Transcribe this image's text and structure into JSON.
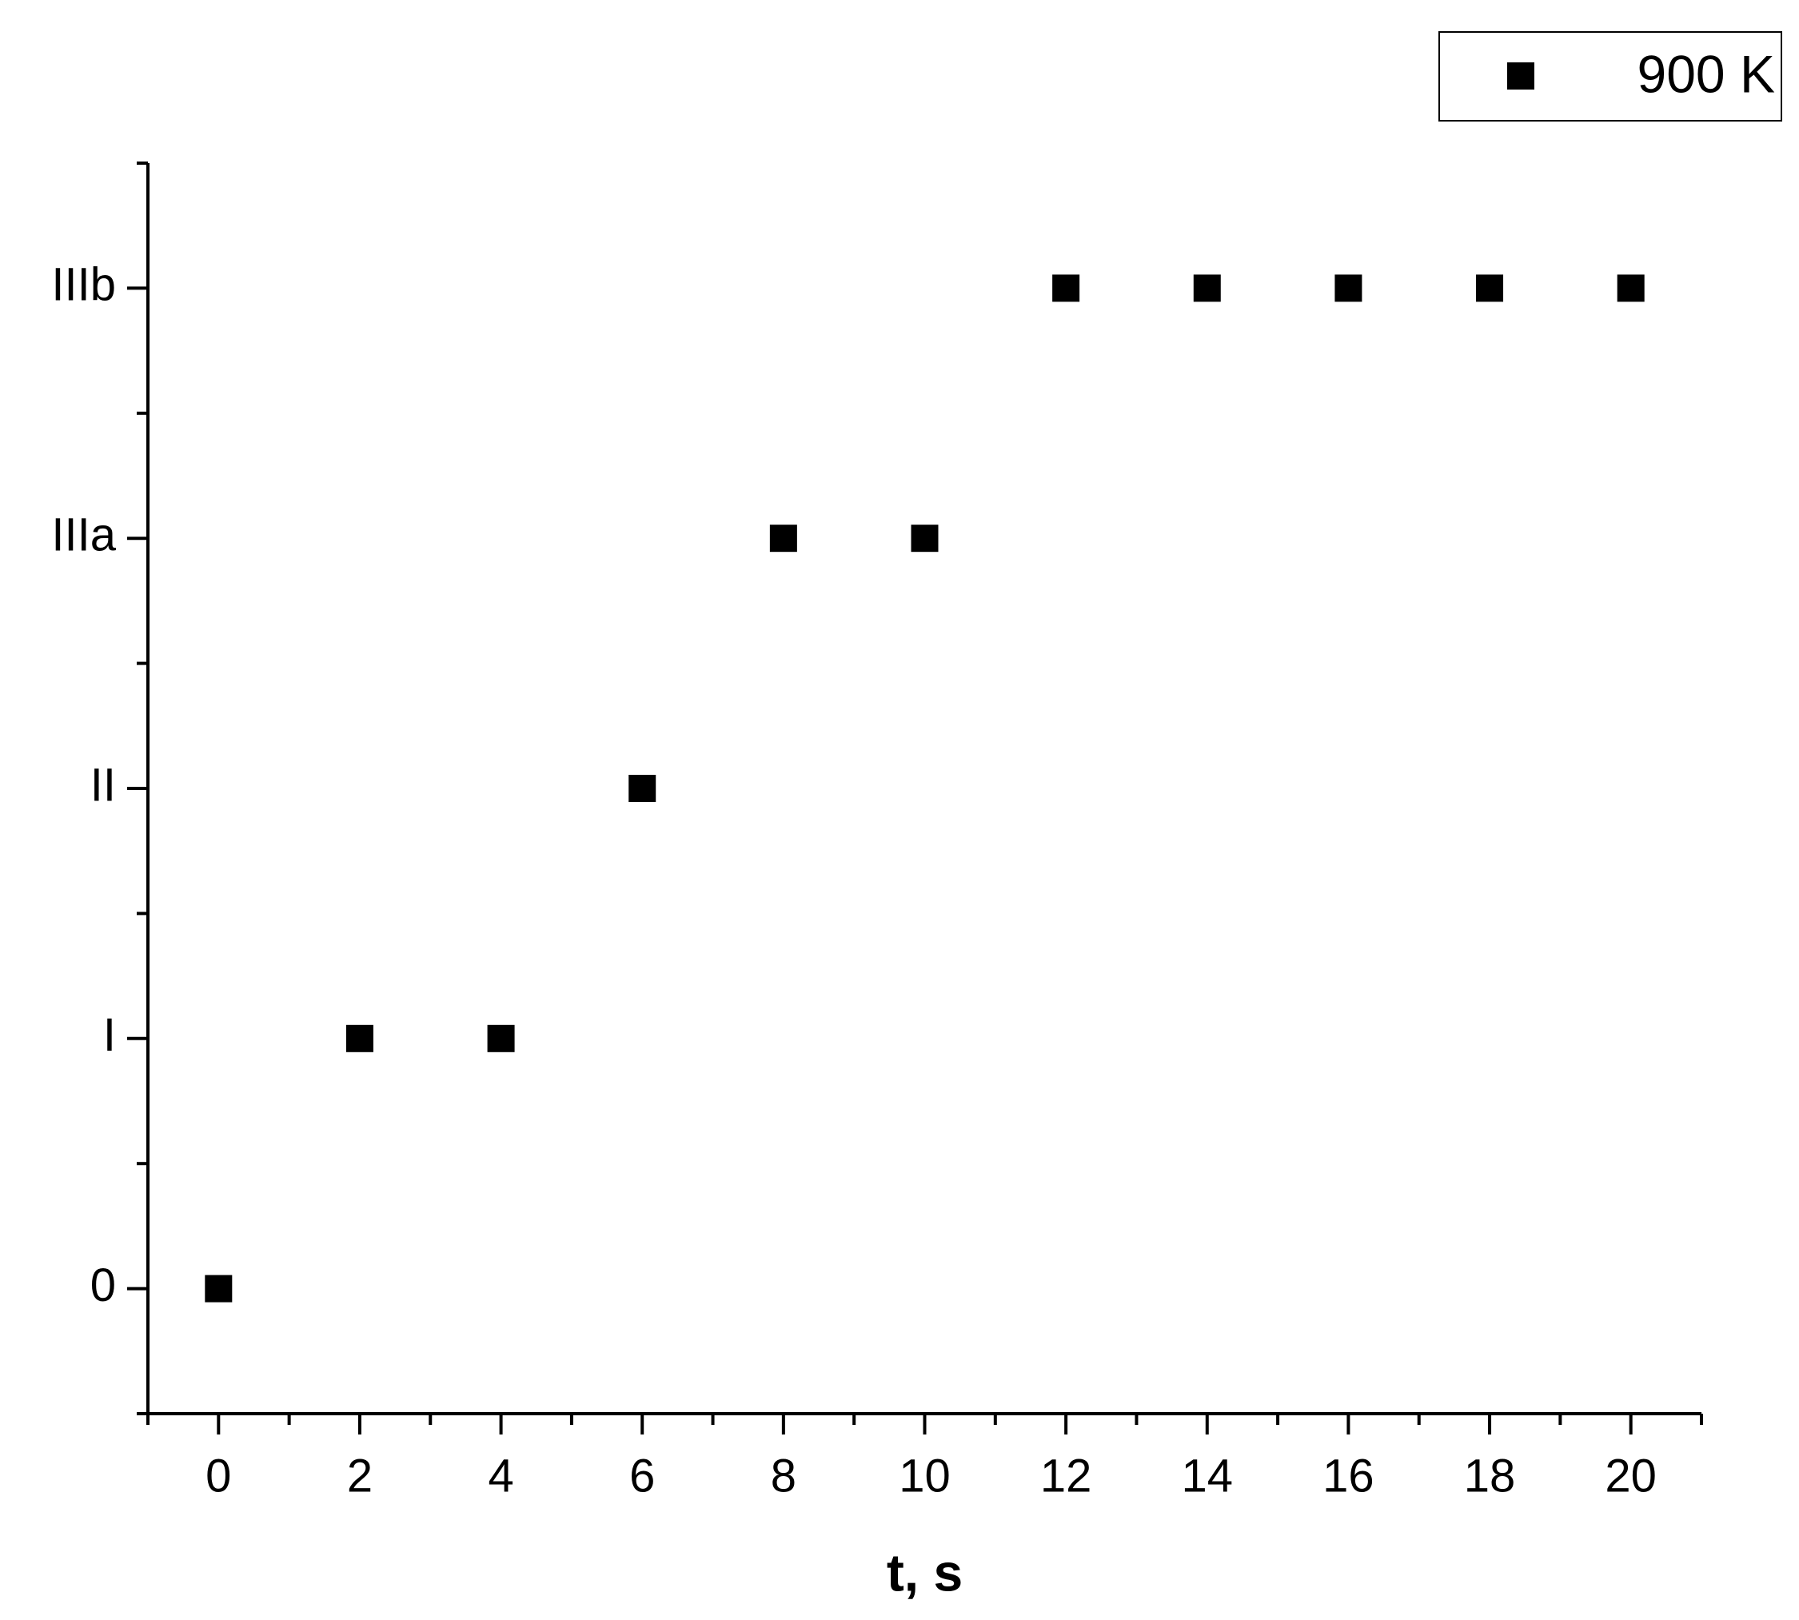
{
  "chart_data": {
    "type": "scatter",
    "x_label": "t, s",
    "series": [
      {
        "name": "900 K",
        "color": "#000000",
        "x": [
          0,
          2,
          4,
          6,
          8,
          10,
          12,
          14,
          16,
          18,
          20
        ],
        "values": [
          0,
          1,
          1,
          2,
          3,
          3,
          4,
          4,
          4,
          4,
          4
        ]
      }
    ],
    "xlim": [
      -1,
      21
    ],
    "xticks": [
      0,
      2,
      4,
      6,
      8,
      10,
      12,
      14,
      16,
      18,
      20
    ],
    "ylim": [
      -0.5,
      4.5
    ],
    "yticks": [
      0,
      {
        "value": 1,
        "label": "I"
      },
      {
        "value": 2,
        "label": "II"
      },
      {
        "value": 3,
        "label": "IIIa"
      },
      {
        "value": 4,
        "label": "IIIb"
      }
    ],
    "grid": false,
    "legend": "top-right"
  }
}
